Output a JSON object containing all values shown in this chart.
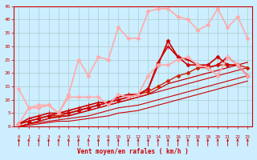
{
  "background_color": "#cceeff",
  "grid_color": "#aacccc",
  "xlabel": "Vent moyen/en rafales ( km/h )",
  "xlabel_color": "#cc0000",
  "tick_color": "#cc0000",
  "xlim": [
    -0.5,
    23.5
  ],
  "ylim": [
    0,
    45
  ],
  "yticks": [
    0,
    5,
    10,
    15,
    20,
    25,
    30,
    35,
    40,
    45
  ],
  "xticks": [
    0,
    1,
    2,
    3,
    4,
    5,
    6,
    7,
    8,
    9,
    10,
    11,
    12,
    13,
    14,
    15,
    16,
    17,
    18,
    19,
    20,
    21,
    22,
    23
  ],
  "lines": [
    {
      "x": [
        0,
        1,
        2,
        3,
        4,
        5,
        6,
        7,
        8,
        9,
        10,
        11,
        12,
        13,
        14,
        15,
        16,
        17,
        18,
        19,
        20,
        21,
        22,
        23
      ],
      "y": [
        0,
        0.5,
        1,
        1.5,
        2,
        2,
        2.5,
        3,
        3.5,
        4,
        5,
        5.5,
        6,
        7,
        8,
        9,
        10,
        11,
        12,
        13,
        14,
        15,
        16,
        17
      ],
      "color": "#cc0000",
      "lw": 0.8,
      "marker": null
    },
    {
      "x": [
        0,
        1,
        2,
        3,
        4,
        5,
        6,
        7,
        8,
        9,
        10,
        11,
        12,
        13,
        14,
        15,
        16,
        17,
        18,
        19,
        20,
        21,
        22,
        23
      ],
      "y": [
        0,
        1,
        1.5,
        2,
        2.5,
        3,
        3.5,
        4,
        5,
        6,
        7,
        7.5,
        8,
        9,
        10,
        11,
        12,
        13,
        14,
        15,
        16,
        17,
        18,
        19
      ],
      "color": "#cc0000",
      "lw": 0.8,
      "marker": null
    },
    {
      "x": [
        0,
        1,
        2,
        3,
        4,
        5,
        6,
        7,
        8,
        9,
        10,
        11,
        12,
        13,
        14,
        15,
        16,
        17,
        18,
        19,
        20,
        21,
        22,
        23
      ],
      "y": [
        0,
        1,
        2,
        3,
        3.5,
        4,
        5,
        6,
        7,
        8,
        9,
        10,
        11,
        12,
        13,
        14,
        15,
        16,
        17,
        18,
        19,
        20,
        21,
        22
      ],
      "color": "#cc0000",
      "lw": 0.8,
      "marker": null
    },
    {
      "x": [
        0,
        1,
        2,
        3,
        4,
        5,
        6,
        7,
        8,
        9,
        10,
        11,
        12,
        13,
        14,
        15,
        16,
        17,
        18,
        19,
        20,
        21,
        22,
        23
      ],
      "y": [
        0,
        1,
        2,
        3,
        4,
        4,
        5,
        6,
        7,
        8,
        9,
        10,
        11,
        12,
        14,
        16,
        17,
        18,
        19,
        20,
        21,
        22,
        23,
        24
      ],
      "color": "#cc0000",
      "lw": 0.9,
      "marker": null
    },
    {
      "x": [
        0,
        1,
        2,
        3,
        4,
        5,
        6,
        7,
        8,
        9,
        10,
        11,
        12,
        13,
        14,
        15,
        16,
        17,
        18,
        19,
        20,
        21,
        22,
        23
      ],
      "y": [
        1,
        2,
        3,
        4,
        4,
        5,
        6,
        7,
        8,
        9,
        10,
        11,
        12,
        13,
        15,
        17,
        19,
        20,
        22,
        22,
        23,
        23,
        23,
        22
      ],
      "color": "#cc2200",
      "lw": 1.0,
      "marker": "D",
      "markersize": 2.5
    },
    {
      "x": [
        0,
        1,
        2,
        3,
        4,
        5,
        6,
        7,
        8,
        9,
        10,
        11,
        12,
        13,
        14,
        15,
        16,
        17,
        18,
        19,
        20,
        21,
        22,
        23
      ],
      "y": [
        1,
        2,
        3,
        4,
        5,
        5,
        6,
        7,
        8,
        9,
        10,
        11,
        12,
        14,
        23,
        32,
        26,
        23,
        23,
        23,
        26,
        23,
        23,
        19
      ],
      "color": "#cc0000",
      "lw": 1.2,
      "marker": "D",
      "markersize": 2.5
    },
    {
      "x": [
        0,
        1,
        2,
        3,
        4,
        5,
        6,
        7,
        8,
        9,
        10,
        11,
        12,
        13,
        14,
        15,
        16,
        17,
        18,
        19,
        20,
        21,
        22,
        23
      ],
      "y": [
        1,
        3,
        4,
        5,
        5,
        6,
        7,
        8,
        9,
        9,
        11,
        12,
        12,
        14,
        24,
        30,
        26,
        25,
        23,
        22,
        23,
        26,
        23,
        19
      ],
      "color": "#cc0000",
      "lw": 1.2,
      "marker": "+",
      "markersize": 4
    },
    {
      "x": [
        0,
        1,
        2,
        3,
        4,
        5,
        6,
        7,
        8,
        9,
        10,
        11,
        12,
        13,
        14,
        15,
        16,
        17,
        18,
        19,
        20,
        21,
        22,
        23
      ],
      "y": [
        1,
        7,
        7,
        8,
        5,
        11,
        11,
        11,
        11,
        8,
        12,
        11,
        12,
        19,
        23,
        23,
        25,
        26,
        23,
        22,
        19,
        26,
        23,
        19
      ],
      "color": "#ffaaaa",
      "lw": 1.2,
      "marker": "D",
      "markersize": 2.5
    },
    {
      "x": [
        0,
        1,
        2,
        3,
        4,
        5,
        6,
        7,
        8,
        9,
        10,
        11,
        12,
        13,
        14,
        15,
        16,
        17,
        18,
        19,
        20,
        21,
        22,
        23
      ],
      "y": [
        14,
        7,
        8,
        8,
        5,
        12,
        25,
        19,
        26,
        25,
        37,
        33,
        33,
        43,
        44,
        44,
        41,
        40,
        36,
        38,
        44,
        37,
        41,
        33
      ],
      "color": "#ffaaaa",
      "lw": 1.2,
      "marker": "D",
      "markersize": 2.5
    }
  ],
  "arrow_markers": [
    0,
    1,
    2,
    3,
    4,
    5,
    6,
    7,
    8,
    9,
    10,
    11,
    12,
    13,
    14,
    15,
    16,
    17,
    18,
    19,
    20,
    21,
    22,
    23
  ]
}
